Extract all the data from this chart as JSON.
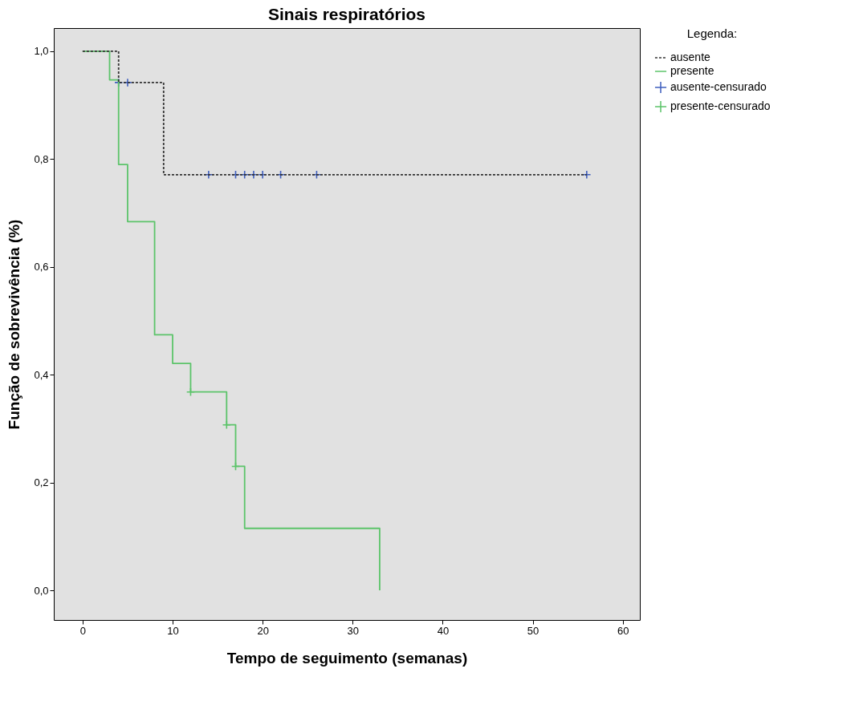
{
  "chart_data": {
    "type": "step",
    "title": "Sinais respiratórios",
    "xlabel": "Tempo de seguimento (semanas)",
    "ylabel": "Função de sobrevivência (%)",
    "legend_title": "Legenda:",
    "legend": "right",
    "grid": false,
    "xlim": [
      -3.2,
      61.9
    ],
    "xticks": [
      0,
      10,
      20,
      30,
      40,
      50,
      60
    ],
    "ylim": [
      -0.055,
      1.043
    ],
    "yticks": [
      {
        "value": 0,
        "label": "0,0"
      },
      {
        "value": 0.2,
        "label": "0,2"
      },
      {
        "value": 0.4,
        "label": "0,4"
      },
      {
        "value": 0.6,
        "label": "0,6"
      },
      {
        "value": 0.8,
        "label": "0,8"
      },
      {
        "value": 1,
        "label": "1,0"
      }
    ],
    "series": [
      {
        "name": "ausente",
        "color": "#333333",
        "line_style": "dashed",
        "x": [
          0,
          4,
          9,
          56
        ],
        "values": [
          1,
          0.942,
          0.771,
          0.771
        ]
      },
      {
        "name": "presente",
        "color": "#5cc46a",
        "line_style": "solid",
        "x": [
          0,
          3,
          4,
          5,
          8,
          10,
          12,
          16,
          17,
          18,
          33
        ],
        "values": [
          1,
          0.947,
          0.79,
          0.684,
          0.474,
          0.421,
          0.368,
          0.307,
          0.23,
          0.115,
          0
        ]
      },
      {
        "name": "ausente-censurado",
        "type": "scatter",
        "marker": "cross",
        "color": "#3f5fbf",
        "x": [
          4,
          5,
          14,
          17,
          18,
          19,
          20,
          22,
          26,
          56
        ],
        "values": [
          0.942,
          0.942,
          0.771,
          0.771,
          0.771,
          0.771,
          0.771,
          0.771,
          0.771,
          0.771
        ]
      },
      {
        "name": "presente-censurado",
        "type": "scatter",
        "marker": "cross",
        "color": "#5cc46a",
        "x": [
          12,
          16,
          17
        ],
        "values": [
          0.368,
          0.307,
          0.23
        ]
      }
    ]
  }
}
